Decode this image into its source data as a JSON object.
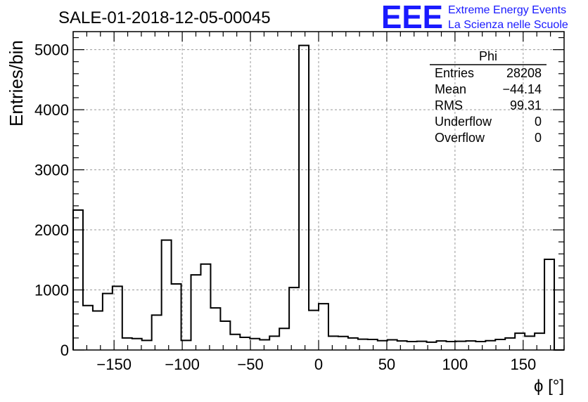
{
  "chart_data": {
    "type": "bar",
    "title": "SALE-01-2018-12-05-00045",
    "xlabel": "ϕ [°]",
    "ylabel": "Entries/bin",
    "xlim": [
      -180,
      180
    ],
    "ylim": [
      0,
      5300
    ],
    "x_ticks": [
      -150,
      -100,
      -50,
      0,
      50,
      100,
      150
    ],
    "x_tick_labels": [
      "−150",
      "−100",
      "−50",
      "0",
      "50",
      "100",
      "150"
    ],
    "y_ticks": [
      0,
      1000,
      2000,
      3000,
      4000,
      5000
    ],
    "y_tick_labels": [
      "0",
      "1000",
      "2000",
      "3000",
      "4000",
      "5000"
    ],
    "grid": true,
    "bin_width": 7.2,
    "bin_edges_start": -180,
    "values": [
      2330,
      740,
      650,
      940,
      1060,
      200,
      190,
      160,
      580,
      1830,
      1100,
      160,
      1250,
      1430,
      700,
      480,
      260,
      210,
      190,
      170,
      230,
      360,
      1040,
      5070,
      660,
      770,
      230,
      225,
      200,
      180,
      175,
      155,
      170,
      150,
      140,
      145,
      130,
      150,
      140,
      145,
      150,
      140,
      155,
      175,
      200,
      280,
      230,
      280,
      1510,
      0
    ],
    "stats_box": {
      "title": "Phi",
      "rows": [
        {
          "label": "Entries",
          "value": "28208"
        },
        {
          "label": "Mean",
          "value": "−44.14"
        },
        {
          "label": "RMS",
          "value": "99.31"
        },
        {
          "label": "Underflow",
          "value": "0"
        },
        {
          "label": "Overflow",
          "value": "0"
        }
      ],
      "placement": "top-right"
    },
    "colors": {
      "line": "#000000",
      "grid": "#999999",
      "logo": "#1a1aff"
    }
  },
  "logo": {
    "mark": "EEE",
    "line1": "Extreme Energy Events",
    "line2": "La Scienza nelle Scuole"
  }
}
